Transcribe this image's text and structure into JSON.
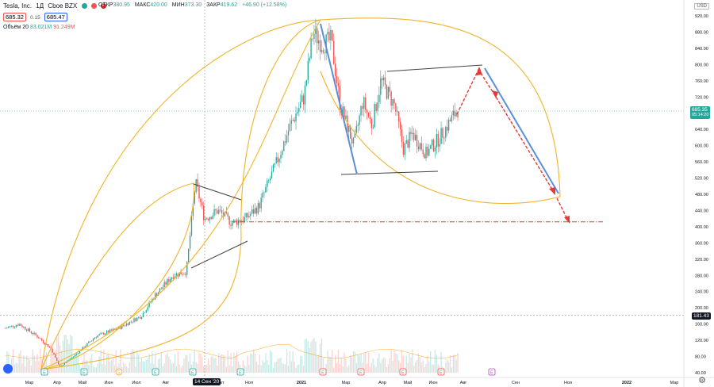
{
  "header": {
    "symbol": "Tesla, Inc.",
    "interval": "1Д",
    "exchange": "Cboe BZX",
    "bid": "685.32",
    "spread": "0.15",
    "ask": "685.47",
    "ohlc": [
      {
        "label": "ОТКР",
        "value": "380.95"
      },
      {
        "label": "МАКС",
        "value": "420.00"
      },
      {
        "label": "МИН",
        "value": "373.30"
      },
      {
        "label": "ЗАКР",
        "value": "419.62"
      },
      {
        "label": "",
        "value": "+46.90 (+12.58%)"
      }
    ],
    "volume": {
      "label": "Объём 20",
      "v1": "83.021M",
      "v2": "91.249M"
    }
  },
  "axis": {
    "currency": "USD",
    "price_ticks": [
      "920.00",
      "880.00",
      "840.00",
      "800.00",
      "760.00",
      "720.00",
      "680.00",
      "640.00",
      "600.00",
      "560.00",
      "520.00",
      "480.00",
      "440.00",
      "400.00",
      "360.00",
      "320.00",
      "280.00",
      "240.00",
      "200.00",
      "160.00",
      "120.00",
      "80.00",
      "40.00"
    ],
    "current_price": "685.35",
    "countdown": "05:14:20",
    "crosshair_price": "181.43",
    "crosshair_date": "14 Сен '20",
    "time_labels": [
      "Мар",
      "Апр",
      "Май",
      "Июн",
      "Июл",
      "Авг",
      "Окт",
      "Ноя",
      "2021",
      "Мар",
      "Апр",
      "Май",
      "Июн",
      "Авг",
      "Сен",
      "Ноя",
      "2022",
      "Мар"
    ]
  },
  "colors": {
    "up": "#26a69a",
    "down": "#ef5350",
    "arc": "#f0b429",
    "trend_blue": "#5b8fd6",
    "dashed": "#e53935",
    "level_line": "#e53935"
  },
  "events": [
    {
      "icon": "earnings",
      "label": "E"
    },
    {
      "icon": "earnings",
      "label": "E"
    },
    {
      "icon": "split",
      "label": "S"
    },
    {
      "icon": "earnings",
      "label": "E"
    },
    {
      "icon": "earnings",
      "label": "E"
    },
    {
      "icon": "earnings",
      "label": "E"
    },
    {
      "icon": "earnings",
      "label": "E"
    },
    {
      "icon": "earnings",
      "label": "E"
    },
    {
      "icon": "earnings",
      "label": "E"
    },
    {
      "icon": "earnings",
      "label": "E"
    }
  ],
  "chart_data": {
    "type": "candlestick",
    "title": "Tesla, Inc. · 1Д · Cboe BZX",
    "xlabel": "",
    "ylabel": "",
    "ylim": [
      40,
      920
    ],
    "x": [
      "2020-03",
      "2020-04",
      "2020-05",
      "2020-06",
      "2020-07",
      "2020-08",
      "2020-09",
      "2020-10",
      "2020-11",
      "2020-12",
      "2021-01",
      "2021-02",
      "2021-03",
      "2021-04",
      "2021-05",
      "2021-06",
      "2021-07"
    ],
    "series": [
      {
        "name": "",
        "values": [
          100,
          110,
          165,
          195,
          285,
          440,
          420,
          410,
          400,
          600,
          850,
          780,
          650,
          720,
          600,
          680,
          685
        ]
      }
    ],
    "key_levels": {
      "support_dashed": 412,
      "crosshair": 181.43,
      "current": 685.35
    },
    "annotations": [
      {
        "type": "trendline",
        "from": [
          "2020-09",
          505
        ],
        "to": [
          "2020-11",
          468
        ]
      },
      {
        "type": "trendline",
        "from": [
          "2020-09",
          300
        ],
        "to": [
          "2020-11",
          370
        ]
      },
      {
        "type": "trendline",
        "from": [
          "2021-04",
          788
        ],
        "to": [
          "2021-07",
          800
        ]
      },
      {
        "type": "trendline",
        "from": [
          "2021-02",
          532
        ],
        "to": [
          "2021-06",
          538
        ]
      },
      {
        "type": "projection",
        "to": 800
      },
      {
        "type": "projection",
        "to": 412
      }
    ]
  }
}
